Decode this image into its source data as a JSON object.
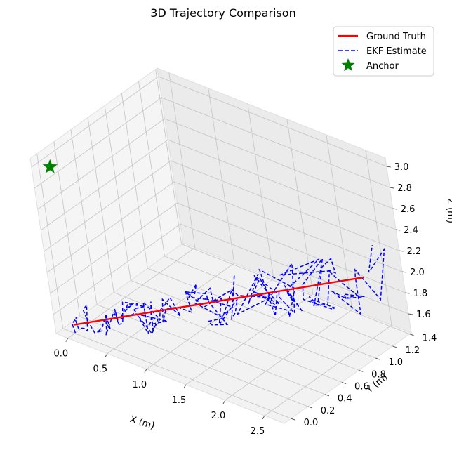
{
  "chart_data": {
    "type": "line3d",
    "title": "3D Trajectory Comparison",
    "xlabel": "X (m)",
    "ylabel": "Y (m)",
    "zlabel": "Z (m)",
    "xlim": [
      -0.15,
      2.75
    ],
    "ylim": [
      -0.08,
      1.42
    ],
    "zlim": [
      1.42,
      3.08
    ],
    "xticks": [
      0.0,
      0.5,
      1.0,
      1.5,
      2.0,
      2.5
    ],
    "yticks": [
      0.0,
      0.2,
      0.4,
      0.6,
      0.8,
      1.0,
      1.2,
      1.4
    ],
    "zticks": [
      1.6,
      1.8,
      2.0,
      2.2,
      2.4,
      2.6,
      2.8,
      3.0
    ],
    "xtick_labels": [
      "0.0",
      "0.5",
      "1.0",
      "1.5",
      "2.0",
      "2.5"
    ],
    "ytick_labels": [
      "0.0",
      "0.2",
      "0.4",
      "0.6",
      "0.8",
      "1.0",
      "1.2",
      "1.4"
    ],
    "ztick_labels": [
      "1.6",
      "1.8",
      "2.0",
      "2.2",
      "2.4",
      "2.6",
      "2.8",
      "3.0"
    ],
    "grid": true,
    "legend_position": "top-right",
    "series": [
      {
        "name": "Ground Truth",
        "color": "#ff0000",
        "style": "solid",
        "start": [
          0.0,
          0.0,
          1.5
        ],
        "end": [
          2.5,
          1.2,
          2.0
        ]
      },
      {
        "name": "EKF Estimate",
        "color": "#0000ff",
        "style": "dashed",
        "start": [
          0.0,
          0.0,
          1.5
        ],
        "end": [
          2.5,
          1.2,
          2.0
        ],
        "noise": 0.07,
        "points": 140
      },
      {
        "name": "Anchor",
        "color": "#008000",
        "marker": "star",
        "point": [
          0.0,
          0.0,
          3.0
        ]
      }
    ]
  }
}
